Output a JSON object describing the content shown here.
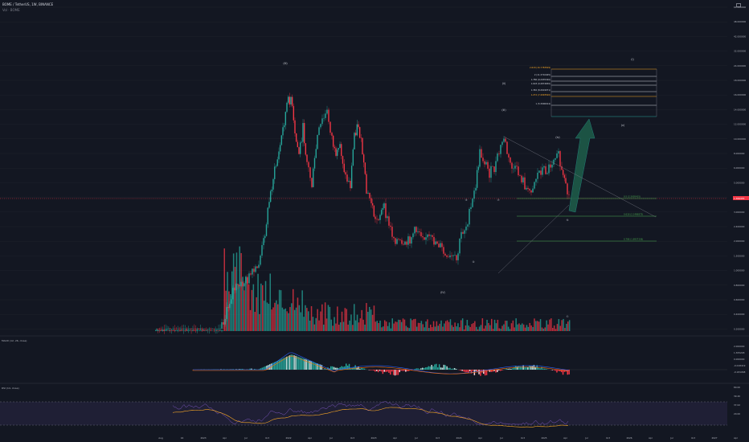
{
  "header": {
    "symbol_line": "BOME / TetherUS, 1W, BINANCE",
    "vol_line": "Vol · BOME"
  },
  "colors": {
    "background": "#131722",
    "up": "#26a69a",
    "down": "#f23645",
    "fib_gold": "#f9a825",
    "fib_white": "#d1d4dc",
    "fib_teal": "#26a69a",
    "fib_green": "#4caf50",
    "arrow": "#1e5e4a",
    "rsi_band": "#7e57c2",
    "rsi_line": "#7e57c2",
    "rsi_ma": "#f9a825",
    "macd_line": "#2962ff",
    "signal_line": "#ff6d00",
    "grid": "#1e222d",
    "current_price_line": "#f23645"
  },
  "labels": {
    "wave_top": "(III)",
    "wave_bottom": "(IV)",
    "macd_title": "MACD (12, 26, close)",
    "rsi_title": "RSI (14, close)",
    "rsi_level_top": "80.00",
    "rsi_level_bottom": "20.00"
  },
  "chart_data": {
    "type": "candlestick",
    "title": "BOME / TetherUS, 1W, BINANCE",
    "x_tick_labels": [
      "Aug",
      "16",
      "2023",
      "Apr",
      "Jul",
      "Oct",
      "2022",
      "Apr",
      "Jul",
      "Oct",
      "2023",
      "Apr",
      "Jul",
      "Oct",
      "2024",
      "Apr",
      "Jul",
      "Oct",
      "2025",
      "Apr",
      "Jul",
      "Oct",
      "2026",
      "Apr",
      "Jul",
      "Oct",
      "2027",
      "Apr"
    ],
    "y_tick_labels": [
      "64.000000",
      "48.000000",
      "42.000000",
      "32.000000",
      "24.000000",
      "18.000000",
      "16.000000",
      "14.000000",
      "12.000000",
      "10.000000",
      "8.000000",
      "6.000000",
      "5.000000",
      "4.000000",
      "3.000000",
      "2.400000",
      "2.000000",
      "1.500000",
      "1.000000",
      "0.800000",
      "0.600000",
      "0.400000",
      "0.200000"
    ],
    "current_price": "1.369455",
    "price_axis_tags": [
      "1.369455",
      "1.346"
    ],
    "fib_levels_upper": [
      {
        "label": "2.618 (16.7783509)"
      },
      {
        "label": "2 (11.3710405)"
      },
      {
        "label": "1.786 (9.2935340)"
      },
      {
        "label": "1.618 (9.4874650)"
      },
      {
        "label": "1.382 (8.2619071)"
      },
      {
        "label": "1.272 (7.4093520)"
      },
      {
        "label": "1 (5.3006914)"
      }
    ],
    "fib_levels_lower": [
      {
        "label": "0.5 (2.3005415)"
      },
      {
        "label": "0.618 (2.1486875)"
      },
      {
        "label": "0.786 (1.8937336)"
      }
    ],
    "waves": [
      {
        "label": "(III)"
      },
      {
        "label": "(IV)"
      },
      {
        "label": "①"
      },
      {
        "label": "②"
      },
      {
        "label": "③"
      },
      {
        "label": "④"
      },
      {
        "label": "⑤"
      },
      {
        "label": "(ii)"
      },
      {
        "label": "(iii)"
      },
      {
        "label": "(iv)"
      },
      {
        "label": "(v)"
      },
      {
        "label": "(i)"
      }
    ],
    "macd_axis": [
      "2.000000",
      "1.305248",
      "0.000000",
      "-0.018419",
      "-0.181068"
    ],
    "rsi_axis": [
      "80.00",
      "39.40",
      "37.02",
      "20.00"
    ]
  }
}
